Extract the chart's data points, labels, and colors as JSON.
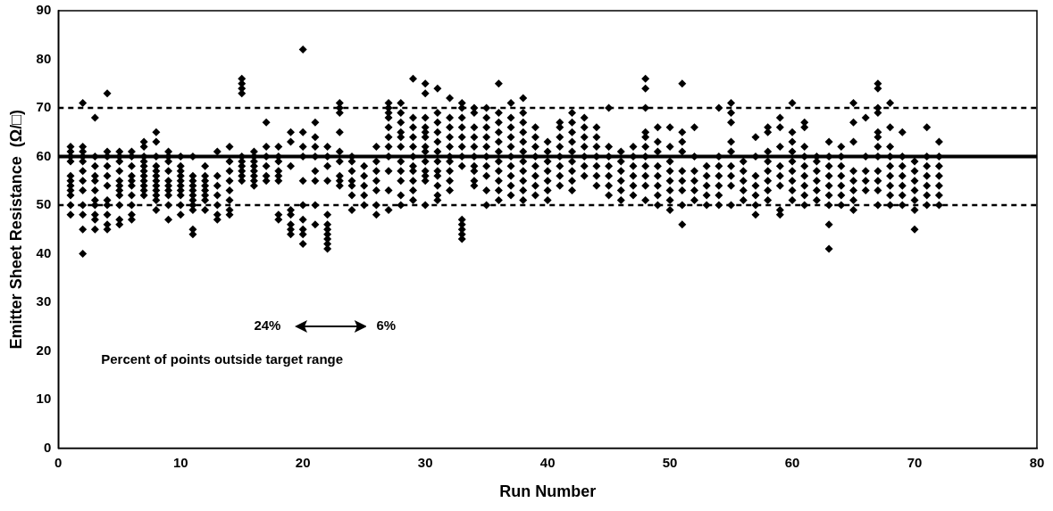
{
  "chart_data": {
    "type": "scatter",
    "xlabel": "Run Number",
    "ylabel": "Emitter Sheet Resistance  (Ω/□)",
    "xlim": [
      0,
      80
    ],
    "xticks": [
      0,
      10,
      20,
      30,
      40,
      50,
      60,
      70,
      80
    ],
    "ylim": [
      0,
      90
    ],
    "yticks": [
      0,
      10,
      20,
      30,
      40,
      50,
      60,
      70,
      80,
      90
    ],
    "grid": false,
    "legend": false,
    "marker": "diamond",
    "ref_lines": [
      {
        "axis": "y",
        "value": 70,
        "color": "#000000",
        "line_style": "dashed"
      },
      {
        "axis": "y",
        "value": 60,
        "color": "#000000",
        "line_style": "solid"
      },
      {
        "axis": "y",
        "value": 50,
        "color": "#000000",
        "line_style": "dashed"
      }
    ],
    "annotations": [
      "24%",
      "6%",
      "Percent of points outside target range"
    ],
    "series": [
      {
        "color": "#000000",
        "x": [
          1,
          1,
          1,
          1,
          1,
          1,
          1,
          1,
          1,
          1,
          1
        ],
        "values": [
          48,
          50,
          52,
          53,
          54,
          55,
          56,
          59,
          60,
          61,
          62
        ]
      },
      {
        "color": "#000000",
        "x": [
          2,
          2,
          2,
          2,
          2,
          2,
          2,
          2,
          2,
          2,
          2,
          2
        ],
        "values": [
          40,
          45,
          48,
          50,
          53,
          55,
          57,
          59,
          60,
          61,
          62,
          71
        ]
      },
      {
        "color": "#000000",
        "x": [
          3,
          3,
          3,
          3,
          3,
          3,
          3,
          3,
          3,
          3,
          3
        ],
        "values": [
          45,
          47,
          48,
          50,
          51,
          53,
          55,
          56,
          58,
          60,
          68
        ]
      },
      {
        "color": "#000000",
        "x": [
          4,
          4,
          4,
          4,
          4,
          4,
          4,
          4,
          4,
          4,
          4
        ],
        "values": [
          45,
          46,
          48,
          50,
          51,
          54,
          56,
          58,
          60,
          61,
          73
        ]
      },
      {
        "color": "#000000",
        "x": [
          5,
          5,
          5,
          5,
          5,
          5,
          5,
          5,
          5,
          5,
          5
        ],
        "values": [
          46,
          47,
          50,
          52,
          53,
          54,
          55,
          57,
          59,
          60,
          61
        ]
      },
      {
        "color": "#000000",
        "x": [
          6,
          6,
          6,
          6,
          6,
          6,
          6,
          6,
          6,
          6
        ],
        "values": [
          47,
          48,
          50,
          52,
          54,
          55,
          56,
          58,
          60,
          61
        ]
      },
      {
        "color": "#000000",
        "x": [
          7,
          7,
          7,
          7,
          7,
          7,
          7,
          7,
          7,
          7,
          7
        ],
        "values": [
          52,
          53,
          54,
          55,
          56,
          57,
          58,
          59,
          60,
          62,
          63
        ]
      },
      {
        "color": "#000000",
        "x": [
          8,
          8,
          8,
          8,
          8,
          8,
          8,
          8,
          8,
          8,
          8,
          8
        ],
        "values": [
          49,
          51,
          52,
          53,
          54,
          55,
          56,
          57,
          58,
          60,
          63,
          65
        ]
      },
      {
        "color": "#000000",
        "x": [
          9,
          9,
          9,
          9,
          9,
          9,
          9,
          9,
          9,
          9
        ],
        "values": [
          47,
          50,
          52,
          53,
          54,
          55,
          57,
          59,
          60,
          61
        ]
      },
      {
        "color": "#000000",
        "x": [
          10,
          10,
          10,
          10,
          10,
          10,
          10,
          10,
          10,
          10
        ],
        "values": [
          48,
          50,
          52,
          53,
          54,
          55,
          56,
          57,
          58,
          60
        ]
      },
      {
        "color": "#000000",
        "x": [
          11,
          11,
          11,
          11,
          11,
          11,
          11,
          11,
          11,
          11,
          11
        ],
        "values": [
          44,
          45,
          49,
          50,
          51,
          52,
          53,
          54,
          55,
          56,
          60
        ]
      },
      {
        "color": "#000000",
        "x": [
          12,
          12,
          12,
          12,
          12,
          12,
          12,
          12
        ],
        "values": [
          49,
          51,
          52,
          53,
          54,
          55,
          56,
          58
        ]
      },
      {
        "color": "#000000",
        "x": [
          13,
          13,
          13,
          13,
          13,
          13,
          13
        ],
        "values": [
          47,
          48,
          50,
          52,
          54,
          56,
          61
        ]
      },
      {
        "color": "#000000",
        "x": [
          14,
          14,
          14,
          14,
          14,
          14,
          14,
          14
        ],
        "values": [
          48,
          49,
          51,
          53,
          55,
          57,
          59,
          62
        ]
      },
      {
        "color": "#000000",
        "x": [
          15,
          15,
          15,
          15,
          15,
          15,
          15,
          15,
          15,
          15
        ],
        "values": [
          55,
          56,
          57,
          58,
          59,
          60,
          73,
          74,
          75,
          76
        ]
      },
      {
        "color": "#000000",
        "x": [
          16,
          16,
          16,
          16,
          16,
          16,
          16,
          16
        ],
        "values": [
          54,
          55,
          56,
          57,
          58,
          59,
          60,
          61
        ]
      },
      {
        "color": "#000000",
        "x": [
          17,
          17,
          17,
          17,
          17,
          17
        ],
        "values": [
          55,
          56,
          58,
          60,
          62,
          67
        ]
      },
      {
        "color": "#000000",
        "x": [
          18,
          18,
          18,
          18,
          18,
          18,
          18,
          18
        ],
        "values": [
          47,
          48,
          55,
          56,
          57,
          59,
          60,
          62
        ]
      },
      {
        "color": "#000000",
        "x": [
          19,
          19,
          19,
          19,
          19,
          19,
          19,
          19
        ],
        "values": [
          44,
          45,
          46,
          48,
          49,
          58,
          63,
          65
        ]
      },
      {
        "color": "#000000",
        "x": [
          20,
          20,
          20,
          20,
          20,
          20,
          20,
          20,
          20,
          20
        ],
        "values": [
          42,
          44,
          45,
          47,
          50,
          55,
          60,
          62,
          65,
          82
        ]
      },
      {
        "color": "#000000",
        "x": [
          21,
          21,
          21,
          21,
          21,
          21,
          21,
          21
        ],
        "values": [
          46,
          50,
          55,
          57,
          60,
          62,
          64,
          67
        ]
      },
      {
        "color": "#000000",
        "x": [
          22,
          22,
          22,
          22,
          22,
          22,
          22,
          22,
          22,
          22,
          22
        ],
        "values": [
          41,
          42,
          43,
          44,
          45,
          46,
          48,
          55,
          58,
          60,
          62
        ]
      },
      {
        "color": "#000000",
        "x": [
          23,
          23,
          23,
          23,
          23,
          23,
          23,
          23,
          23
        ],
        "values": [
          54,
          55,
          56,
          59,
          61,
          65,
          69,
          70,
          71
        ]
      },
      {
        "color": "#000000",
        "x": [
          24,
          24,
          24,
          24,
          24,
          24,
          24
        ],
        "values": [
          49,
          52,
          54,
          55,
          57,
          59,
          60
        ]
      },
      {
        "color": "#000000",
        "x": [
          25,
          25,
          25,
          25,
          25
        ],
        "values": [
          50,
          52,
          54,
          56,
          58
        ]
      },
      {
        "color": "#000000",
        "x": [
          26,
          26,
          26,
          26,
          26,
          26,
          26
        ],
        "values": [
          48,
          50,
          53,
          55,
          57,
          59,
          62
        ]
      },
      {
        "color": "#000000",
        "x": [
          27,
          27,
          27,
          27,
          27,
          27,
          27,
          27,
          27,
          27,
          27
        ],
        "values": [
          49,
          53,
          57,
          60,
          62,
          64,
          66,
          68,
          69,
          70,
          71
        ]
      },
      {
        "color": "#000000",
        "x": [
          28,
          28,
          28,
          28,
          28,
          28,
          28,
          28,
          28,
          28,
          28
        ],
        "values": [
          50,
          52,
          55,
          57,
          59,
          62,
          64,
          65,
          67,
          69,
          71
        ]
      },
      {
        "color": "#000000",
        "x": [
          29,
          29,
          29,
          29,
          29,
          29,
          29,
          29,
          29,
          29,
          29
        ],
        "values": [
          51,
          53,
          55,
          57,
          58,
          60,
          62,
          64,
          66,
          68,
          76
        ]
      },
      {
        "color": "#000000",
        "x": [
          30,
          30,
          30,
          30,
          30,
          30,
          30,
          30,
          30,
          30,
          30,
          30,
          30
        ],
        "values": [
          50,
          55,
          56,
          57,
          59,
          61,
          62,
          64,
          65,
          66,
          68,
          73,
          75
        ]
      },
      {
        "color": "#000000",
        "x": [
          31,
          31,
          31,
          31,
          31,
          31,
          31,
          31,
          31,
          31,
          31,
          31
        ],
        "values": [
          51,
          52,
          54,
          56,
          57,
          59,
          61,
          63,
          65,
          67,
          69,
          74
        ]
      },
      {
        "color": "#000000",
        "x": [
          32,
          32,
          32,
          32,
          32,
          32,
          32,
          32,
          32,
          32
        ],
        "values": [
          53,
          55,
          57,
          59,
          60,
          62,
          64,
          66,
          68,
          72
        ]
      },
      {
        "color": "#000000",
        "x": [
          33,
          33,
          33,
          33,
          33,
          33,
          33,
          33,
          33,
          33,
          33,
          33,
          33
        ],
        "values": [
          43,
          44,
          45,
          46,
          47,
          58,
          60,
          62,
          64,
          66,
          68,
          70,
          71
        ]
      },
      {
        "color": "#000000",
        "x": [
          34,
          34,
          34,
          34,
          34,
          34,
          34,
          34,
          34,
          34
        ],
        "values": [
          54,
          55,
          57,
          58,
          60,
          62,
          64,
          66,
          69,
          70
        ]
      },
      {
        "color": "#000000",
        "x": [
          35,
          35,
          35,
          35,
          35,
          35,
          35,
          35,
          35,
          35
        ],
        "values": [
          50,
          53,
          56,
          58,
          60,
          62,
          64,
          66,
          68,
          70
        ]
      },
      {
        "color": "#000000",
        "x": [
          36,
          36,
          36,
          36,
          36,
          36,
          36,
          36,
          36,
          36,
          36
        ],
        "values": [
          51,
          53,
          55,
          57,
          59,
          61,
          63,
          65,
          67,
          69,
          75
        ]
      },
      {
        "color": "#000000",
        "x": [
          37,
          37,
          37,
          37,
          37,
          37,
          37,
          37,
          37,
          37
        ],
        "values": [
          52,
          54,
          56,
          58,
          60,
          62,
          64,
          66,
          68,
          71
        ]
      },
      {
        "color": "#000000",
        "x": [
          38,
          38,
          38,
          38,
          38,
          38,
          38,
          38,
          38,
          38,
          38
        ],
        "values": [
          51,
          53,
          55,
          57,
          59,
          61,
          63,
          65,
          67,
          69,
          72
        ]
      },
      {
        "color": "#000000",
        "x": [
          39,
          39,
          39,
          39,
          39,
          39,
          39,
          39
        ],
        "values": [
          52,
          54,
          56,
          58,
          60,
          62,
          64,
          66
        ]
      },
      {
        "color": "#000000",
        "x": [
          40,
          40,
          40,
          40,
          40,
          40,
          40
        ],
        "values": [
          51,
          53,
          55,
          57,
          59,
          61,
          63
        ]
      },
      {
        "color": "#000000",
        "x": [
          41,
          41,
          41,
          41,
          41,
          41,
          41,
          41
        ],
        "values": [
          54,
          56,
          58,
          60,
          62,
          64,
          66,
          67
        ]
      },
      {
        "color": "#000000",
        "x": [
          42,
          42,
          42,
          42,
          42,
          42,
          42,
          42,
          42
        ],
        "values": [
          53,
          55,
          57,
          59,
          61,
          63,
          65,
          67,
          69
        ]
      },
      {
        "color": "#000000",
        "x": [
          43,
          43,
          43,
          43,
          43,
          43,
          43
        ],
        "values": [
          56,
          58,
          60,
          62,
          64,
          66,
          68
        ]
      },
      {
        "color": "#000000",
        "x": [
          44,
          44,
          44,
          44,
          44,
          44,
          44
        ],
        "values": [
          54,
          56,
          58,
          60,
          62,
          64,
          66
        ]
      },
      {
        "color": "#000000",
        "x": [
          45,
          45,
          45,
          45,
          45,
          45,
          45
        ],
        "values": [
          52,
          54,
          56,
          58,
          60,
          62,
          70
        ]
      },
      {
        "color": "#000000",
        "x": [
          46,
          46,
          46,
          46,
          46,
          46
        ],
        "values": [
          51,
          53,
          55,
          57,
          59,
          61
        ]
      },
      {
        "color": "#000000",
        "x": [
          47,
          47,
          47,
          47,
          47,
          47
        ],
        "values": [
          52,
          54,
          56,
          58,
          60,
          62
        ]
      },
      {
        "color": "#000000",
        "x": [
          48,
          48,
          48,
          48,
          48,
          48,
          48,
          48,
          48,
          48,
          48
        ],
        "values": [
          51,
          54,
          56,
          58,
          60,
          62,
          64,
          65,
          70,
          74,
          76
        ]
      },
      {
        "color": "#000000",
        "x": [
          49,
          49,
          49,
          49,
          49,
          49,
          49,
          49
        ],
        "values": [
          50,
          52,
          54,
          56,
          58,
          61,
          63,
          66
        ]
      },
      {
        "color": "#000000",
        "x": [
          50,
          50,
          50,
          50,
          50,
          50,
          50,
          50
        ],
        "values": [
          49,
          51,
          53,
          55,
          57,
          59,
          62,
          66
        ]
      },
      {
        "color": "#000000",
        "x": [
          51,
          51,
          51,
          51,
          51,
          51,
          51,
          51,
          51
        ],
        "values": [
          46,
          50,
          53,
          55,
          57,
          61,
          63,
          65,
          75
        ]
      },
      {
        "color": "#000000",
        "x": [
          52,
          52,
          52,
          52,
          52,
          52
        ],
        "values": [
          51,
          53,
          55,
          57,
          60,
          66
        ]
      },
      {
        "color": "#000000",
        "x": [
          53,
          53,
          53,
          53,
          53
        ],
        "values": [
          50,
          52,
          54,
          56,
          58
        ]
      },
      {
        "color": "#000000",
        "x": [
          54,
          54,
          54,
          54,
          54,
          54,
          54
        ],
        "values": [
          50,
          52,
          54,
          56,
          58,
          60,
          70
        ]
      },
      {
        "color": "#000000",
        "x": [
          55,
          55,
          55,
          55,
          55,
          55,
          55,
          55,
          55
        ],
        "values": [
          50,
          54,
          56,
          58,
          61,
          63,
          67,
          69,
          71
        ]
      },
      {
        "color": "#000000",
        "x": [
          56,
          56,
          56,
          56,
          56
        ],
        "values": [
          51,
          53,
          55,
          57,
          59
        ]
      },
      {
        "color": "#000000",
        "x": [
          57,
          57,
          57,
          57,
          57,
          57,
          57
        ],
        "values": [
          48,
          50,
          52,
          54,
          56,
          60,
          64
        ]
      },
      {
        "color": "#000000",
        "x": [
          58,
          58,
          58,
          58,
          58,
          58,
          58,
          58
        ],
        "values": [
          51,
          53,
          55,
          57,
          59,
          61,
          65,
          66
        ]
      },
      {
        "color": "#000000",
        "x": [
          59,
          59,
          59,
          59,
          59,
          59,
          59,
          59
        ],
        "values": [
          48,
          49,
          54,
          56,
          58,
          62,
          66,
          68
        ]
      },
      {
        "color": "#000000",
        "x": [
          60,
          60,
          60,
          60,
          60,
          60,
          60,
          60,
          60
        ],
        "values": [
          51,
          53,
          55,
          57,
          59,
          61,
          63,
          65,
          71
        ]
      },
      {
        "color": "#000000",
        "x": [
          61,
          61,
          61,
          61,
          61,
          61,
          61,
          61,
          61
        ],
        "values": [
          50,
          52,
          54,
          56,
          58,
          60,
          62,
          66,
          67
        ]
      },
      {
        "color": "#000000",
        "x": [
          62,
          62,
          62,
          62,
          62,
          62
        ],
        "values": [
          51,
          53,
          55,
          57,
          59,
          60
        ]
      },
      {
        "color": "#000000",
        "x": [
          63,
          63,
          63,
          63,
          63,
          63,
          63,
          63,
          63
        ],
        "values": [
          41,
          46,
          50,
          52,
          54,
          56,
          58,
          60,
          63
        ]
      },
      {
        "color": "#000000",
        "x": [
          64,
          64,
          64,
          64,
          64,
          64,
          64
        ],
        "values": [
          50,
          52,
          54,
          56,
          58,
          60,
          62
        ]
      },
      {
        "color": "#000000",
        "x": [
          65,
          65,
          65,
          65,
          65,
          65,
          65,
          65
        ],
        "values": [
          49,
          51,
          53,
          55,
          57,
          63,
          67,
          71
        ]
      },
      {
        "color": "#000000",
        "x": [
          66,
          66,
          66,
          66,
          66
        ],
        "values": [
          53,
          55,
          57,
          60,
          68
        ]
      },
      {
        "color": "#000000",
        "x": [
          67,
          67,
          67,
          67,
          67,
          67,
          67,
          67,
          67,
          67,
          67,
          67
        ],
        "values": [
          50,
          53,
          55,
          57,
          60,
          62,
          64,
          65,
          69,
          70,
          74,
          75
        ]
      },
      {
        "color": "#000000",
        "x": [
          68,
          68,
          68,
          68,
          68,
          68,
          68,
          68,
          68
        ],
        "values": [
          50,
          52,
          54,
          56,
          58,
          60,
          62,
          66,
          71
        ]
      },
      {
        "color": "#000000",
        "x": [
          69,
          69,
          69,
          69,
          69,
          69,
          69
        ],
        "values": [
          50,
          52,
          54,
          56,
          58,
          60,
          65
        ]
      },
      {
        "color": "#000000",
        "x": [
          70,
          70,
          70,
          70,
          70,
          70,
          70
        ],
        "values": [
          45,
          49,
          51,
          53,
          55,
          57,
          59
        ]
      },
      {
        "color": "#000000",
        "x": [
          71,
          71,
          71,
          71,
          71,
          71,
          71
        ],
        "values": [
          50,
          52,
          54,
          56,
          58,
          60,
          66
        ]
      },
      {
        "color": "#000000",
        "x": [
          72,
          72,
          72,
          72,
          72,
          72,
          72
        ],
        "values": [
          50,
          52,
          54,
          56,
          58,
          60,
          63
        ]
      }
    ]
  }
}
